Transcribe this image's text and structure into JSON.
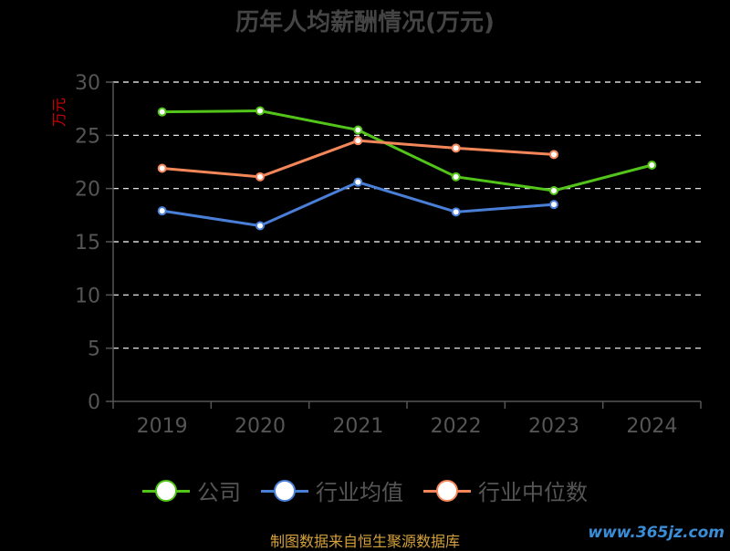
{
  "title": "历年人均薪酬情况(万元)",
  "source": "制图数据来自恒生聚源数据库",
  "watermark": "www.365jz.com",
  "colors": {
    "company": "#52c41a",
    "industry_avg": "#4a7fd8",
    "industry_median": "#f4875a",
    "grid": "#ffffff",
    "axis": "#555555",
    "ylabel": "#cc0000"
  },
  "chart_data": {
    "type": "line",
    "title": "历年人均薪酬情况(万元)",
    "xlabel": "",
    "ylabel": "万元",
    "categories": [
      "2019",
      "2020",
      "2021",
      "2022",
      "2023",
      "2024"
    ],
    "ylim": [
      0,
      30
    ],
    "yticks": [
      0,
      5,
      10,
      15,
      20,
      25,
      30
    ],
    "grid": true,
    "legend_position": "bottom",
    "series": [
      {
        "name": "公司",
        "color": "#52c41a",
        "values": [
          27.2,
          27.3,
          25.5,
          21.1,
          19.8,
          22.2
        ]
      },
      {
        "name": "行业均值",
        "color": "#4a7fd8",
        "values": [
          17.9,
          16.5,
          20.6,
          17.8,
          18.5,
          null
        ]
      },
      {
        "name": "行业中位数",
        "color": "#f4875a",
        "values": [
          21.9,
          21.1,
          24.5,
          23.8,
          23.2,
          null
        ]
      }
    ]
  }
}
